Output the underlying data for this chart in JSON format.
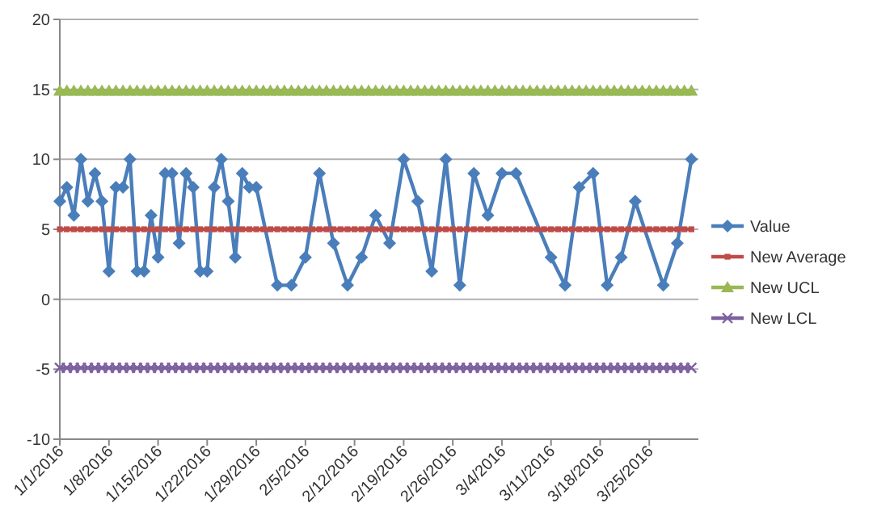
{
  "chart_data": {
    "type": "line",
    "x": [
      "2016-01-01",
      "2016-01-02",
      "2016-01-03",
      "2016-01-04",
      "2016-01-05",
      "2016-01-06",
      "2016-01-07",
      "2016-01-08",
      "2016-01-09",
      "2016-01-10",
      "2016-01-11",
      "2016-01-12",
      "2016-01-13",
      "2016-01-14",
      "2016-01-15",
      "2016-01-16",
      "2016-01-17",
      "2016-01-18",
      "2016-01-19",
      "2016-01-20",
      "2016-01-21",
      "2016-01-22",
      "2016-01-23",
      "2016-01-24",
      "2016-01-25",
      "2016-01-26",
      "2016-01-27",
      "2016-01-28",
      "2016-01-29",
      "2016-01-30",
      "2016-01-31",
      "2016-02-01",
      "2016-02-02",
      "2016-02-03",
      "2016-02-04",
      "2016-02-05",
      "2016-02-06",
      "2016-02-07",
      "2016-02-08",
      "2016-02-09",
      "2016-02-10",
      "2016-02-11",
      "2016-02-12",
      "2016-02-13",
      "2016-02-14",
      "2016-02-15",
      "2016-02-16",
      "2016-02-17",
      "2016-02-18",
      "2016-02-19",
      "2016-02-20",
      "2016-02-21",
      "2016-02-22",
      "2016-02-23",
      "2016-02-24",
      "2016-02-25",
      "2016-02-26",
      "2016-02-27",
      "2016-02-28",
      "2016-02-29",
      "2016-03-01",
      "2016-03-02",
      "2016-03-03",
      "2016-03-04",
      "2016-03-05",
      "2016-03-06",
      "2016-03-07",
      "2016-03-08",
      "2016-03-09",
      "2016-03-10",
      "2016-03-11",
      "2016-03-12",
      "2016-03-13",
      "2016-03-14",
      "2016-03-15",
      "2016-03-16",
      "2016-03-17",
      "2016-03-18",
      "2016-03-19",
      "2016-03-20",
      "2016-03-21",
      "2016-03-22",
      "2016-03-23",
      "2016-03-24",
      "2016-03-25",
      "2016-03-26",
      "2016-03-27",
      "2016-03-28",
      "2016-03-29",
      "2016-03-30",
      "2016-03-31"
    ],
    "series": [
      {
        "name": "Value",
        "color": "#4a7ebb",
        "marker": "diamond",
        "x": [
          "2016-01-01",
          "2016-01-02",
          "2016-01-03",
          "2016-01-04",
          "2016-01-05",
          "2016-01-06",
          "2016-01-07",
          "2016-01-08",
          "2016-01-09",
          "2016-01-10",
          "2016-01-11",
          "2016-01-12",
          "2016-01-13",
          "2016-01-14",
          "2016-01-15",
          "2016-01-16",
          "2016-01-17",
          "2016-01-18",
          "2016-01-19",
          "2016-01-20",
          "2016-01-21",
          "2016-01-22",
          "2016-01-23",
          "2016-01-24",
          "2016-01-25",
          "2016-01-26",
          "2016-01-27",
          "2016-01-28",
          "2016-01-29",
          "2016-02-01",
          "2016-02-03",
          "2016-02-05",
          "2016-02-07",
          "2016-02-09",
          "2016-02-11",
          "2016-02-13",
          "2016-02-15",
          "2016-02-17",
          "2016-02-19",
          "2016-02-21",
          "2016-02-23",
          "2016-02-25",
          "2016-02-27",
          "2016-02-29",
          "2016-03-02",
          "2016-03-04",
          "2016-03-06",
          "2016-03-11",
          "2016-03-13",
          "2016-03-15",
          "2016-03-17",
          "2016-03-19",
          "2016-03-21",
          "2016-03-23",
          "2016-03-27",
          "2016-03-29",
          "2016-03-31"
        ],
        "values": [
          7,
          8,
          6,
          10,
          7,
          9,
          7,
          2,
          8,
          8,
          10,
          2,
          2,
          6,
          3,
          9,
          9,
          4,
          9,
          8,
          2,
          2,
          8,
          10,
          7,
          3,
          9,
          8,
          8,
          1,
          1,
          3,
          9,
          4,
          1,
          3,
          6,
          4,
          10,
          7,
          2,
          10,
          1,
          9,
          6,
          9,
          9,
          3,
          1,
          8,
          9,
          1,
          3,
          7,
          1,
          4,
          10
        ]
      },
      {
        "name": "New Average",
        "color": "#be4b48",
        "marker": "square",
        "values": [
          5,
          5,
          5,
          5,
          5,
          5,
          5,
          5,
          5,
          5,
          5,
          5,
          5,
          5,
          5,
          5,
          5,
          5,
          5,
          5,
          5,
          5,
          5,
          5,
          5,
          5,
          5,
          5,
          5,
          5,
          5,
          5,
          5,
          5,
          5,
          5,
          5,
          5,
          5,
          5,
          5,
          5,
          5,
          5,
          5,
          5,
          5,
          5,
          5,
          5,
          5,
          5,
          5,
          5,
          5,
          5,
          5,
          5,
          5,
          5,
          5,
          5,
          5,
          5,
          5,
          5,
          5,
          5,
          5,
          5,
          5,
          5,
          5,
          5,
          5,
          5,
          5,
          5,
          5,
          5,
          5,
          5,
          5,
          5,
          5,
          5,
          5,
          5,
          5,
          5,
          5
        ]
      },
      {
        "name": "New UCL",
        "color": "#98b954",
        "marker": "triangle",
        "values": [
          14.9,
          14.9,
          14.9,
          14.9,
          14.9,
          14.9,
          14.9,
          14.9,
          14.9,
          14.9,
          14.9,
          14.9,
          14.9,
          14.9,
          14.9,
          14.9,
          14.9,
          14.9,
          14.9,
          14.9,
          14.9,
          14.9,
          14.9,
          14.9,
          14.9,
          14.9,
          14.9,
          14.9,
          14.9,
          14.9,
          14.9,
          14.9,
          14.9,
          14.9,
          14.9,
          14.9,
          14.9,
          14.9,
          14.9,
          14.9,
          14.9,
          14.9,
          14.9,
          14.9,
          14.9,
          14.9,
          14.9,
          14.9,
          14.9,
          14.9,
          14.9,
          14.9,
          14.9,
          14.9,
          14.9,
          14.9,
          14.9,
          14.9,
          14.9,
          14.9,
          14.9,
          14.9,
          14.9,
          14.9,
          14.9,
          14.9,
          14.9,
          14.9,
          14.9,
          14.9,
          14.9,
          14.9,
          14.9,
          14.9,
          14.9,
          14.9,
          14.9,
          14.9,
          14.9,
          14.9,
          14.9,
          14.9,
          14.9,
          14.9,
          14.9,
          14.9,
          14.9,
          14.9,
          14.9,
          14.9,
          14.9
        ]
      },
      {
        "name": "New LCL",
        "color": "#7d60a0",
        "marker": "cross",
        "values": [
          -4.9,
          -4.9,
          -4.9,
          -4.9,
          -4.9,
          -4.9,
          -4.9,
          -4.9,
          -4.9,
          -4.9,
          -4.9,
          -4.9,
          -4.9,
          -4.9,
          -4.9,
          -4.9,
          -4.9,
          -4.9,
          -4.9,
          -4.9,
          -4.9,
          -4.9,
          -4.9,
          -4.9,
          -4.9,
          -4.9,
          -4.9,
          -4.9,
          -4.9,
          -4.9,
          -4.9,
          -4.9,
          -4.9,
          -4.9,
          -4.9,
          -4.9,
          -4.9,
          -4.9,
          -4.9,
          -4.9,
          -4.9,
          -4.9,
          -4.9,
          -4.9,
          -4.9,
          -4.9,
          -4.9,
          -4.9,
          -4.9,
          -4.9,
          -4.9,
          -4.9,
          -4.9,
          -4.9,
          -4.9,
          -4.9,
          -4.9,
          -4.9,
          -4.9,
          -4.9,
          -4.9,
          -4.9,
          -4.9,
          -4.9,
          -4.9,
          -4.9,
          -4.9,
          -4.9,
          -4.9,
          -4.9,
          -4.9,
          -4.9,
          -4.9,
          -4.9,
          -4.9,
          -4.9,
          -4.9,
          -4.9,
          -4.9,
          -4.9,
          -4.9,
          -4.9,
          -4.9,
          -4.9,
          -4.9,
          -4.9,
          -4.9,
          -4.9,
          -4.9,
          -4.9,
          -4.9
        ]
      }
    ],
    "xlim": [
      "2016-01-01",
      "2016-04-01"
    ],
    "xticks": [
      {
        "value": "2016-01-01",
        "label": "1/1/2016"
      },
      {
        "value": "2016-01-08",
        "label": "1/8/2016"
      },
      {
        "value": "2016-01-15",
        "label": "1/15/2016"
      },
      {
        "value": "2016-01-22",
        "label": "1/22/2016"
      },
      {
        "value": "2016-01-29",
        "label": "1/29/2016"
      },
      {
        "value": "2016-02-05",
        "label": "2/5/2016"
      },
      {
        "value": "2016-02-12",
        "label": "2/12/2016"
      },
      {
        "value": "2016-02-19",
        "label": "2/19/2016"
      },
      {
        "value": "2016-02-26",
        "label": "2/26/2016"
      },
      {
        "value": "2016-03-04",
        "label": "3/4/2016"
      },
      {
        "value": "2016-03-11",
        "label": "3/11/2016"
      },
      {
        "value": "2016-03-18",
        "label": "3/18/2016"
      },
      {
        "value": "2016-03-25",
        "label": "3/25/2016"
      }
    ],
    "ylim": [
      -10,
      20
    ],
    "yticks": [
      -10,
      -5,
      0,
      5,
      10,
      15,
      20
    ],
    "grid": "y",
    "legend": "right"
  }
}
